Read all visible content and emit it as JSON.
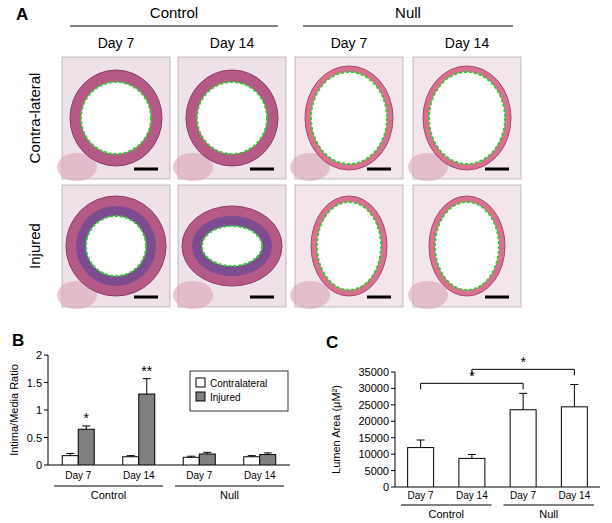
{
  "figure": {
    "panel_label": "A",
    "groups": [
      "Control",
      "Null"
    ],
    "columns": [
      "Day 7",
      "Day 14",
      "Day 7",
      "Day 14"
    ],
    "rows": [
      "Contra-lateral",
      "Injured"
    ]
  },
  "chart_data": [
    {
      "type": "bar",
      "panel_label": "B",
      "y_label": "Intima/Media Ratio",
      "categories": [
        "Day 7",
        "Day 14",
        "Day 7",
        "Day 14"
      ],
      "groups": [
        "Control",
        "Null"
      ],
      "series": [
        {
          "name": "Contralateral",
          "color": "#ffffff",
          "values": [
            0.17,
            0.15,
            0.14,
            0.15
          ],
          "errors": [
            0.04,
            0.02,
            0.02,
            0.02
          ]
        },
        {
          "name": "Injured",
          "color": "#808080",
          "values": [
            0.65,
            1.29,
            0.2,
            0.19
          ],
          "errors": [
            0.06,
            0.28,
            0.03,
            0.03
          ]
        }
      ],
      "ylim": [
        0,
        2
      ],
      "yticks": [
        0,
        0.5,
        1,
        1.5,
        2
      ],
      "legend": "upper right",
      "annotations": [
        {
          "text": "*",
          "series": 1,
          "index": 0
        },
        {
          "text": "**",
          "series": 1,
          "index": 1
        }
      ]
    },
    {
      "type": "bar",
      "panel_label": "C",
      "y_label": "Lumen Area (μM²)",
      "categories": [
        "Day 7",
        "Day 14",
        "Day 7",
        "Day 14"
      ],
      "groups": [
        "Control",
        "Null"
      ],
      "values": [
        12000,
        8700,
        23500,
        24400
      ],
      "errors": [
        2300,
        1200,
        5000,
        6800
      ],
      "color": "#ffffff",
      "ylim": [
        0,
        35000
      ],
      "yticks": [
        0,
        5000,
        10000,
        15000,
        20000,
        25000,
        30000,
        35000
      ],
      "brackets": [
        {
          "from": 0,
          "to": 2,
          "text": "*"
        },
        {
          "from": 1,
          "to": 3,
          "text": "*"
        }
      ]
    }
  ]
}
